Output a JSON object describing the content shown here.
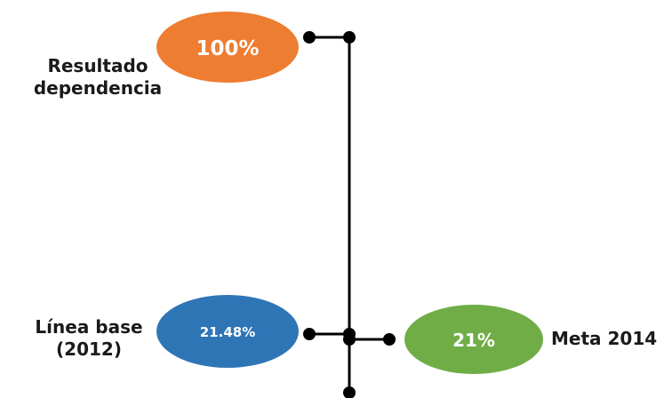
{
  "result": {
    "value": "100%",
    "label_line1": "Resultado",
    "label_line2": "dependencia",
    "color": "#ED7D31"
  },
  "baseline": {
    "value": "21.48%",
    "label_line1": "Línea base",
    "label_line2": "(2012)",
    "color": "#2E75B6"
  },
  "target": {
    "value": "21%",
    "label": "Meta 2014",
    "color": "#70AD47"
  },
  "connector_color": "#000000"
}
